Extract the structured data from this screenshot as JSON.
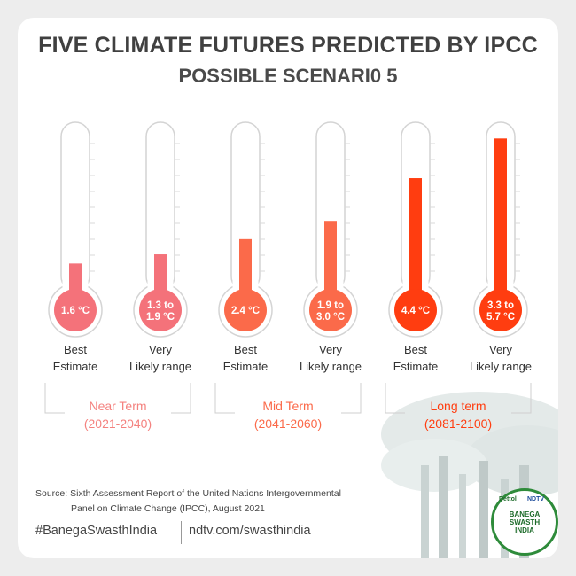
{
  "title": "FIVE CLIMATE FUTURES PREDICTED BY IPCC",
  "subtitle": "POSSIBLE SCENARI0 5",
  "colors": {
    "near": "#f4727a",
    "mid": "#fb6a4a",
    "long": "#ff3d10"
  },
  "chart_data": {
    "type": "bar",
    "categories": [
      "Best Estimate",
      "Very Likely range",
      "Best Estimate",
      "Very Likely range",
      "Best Estimate",
      "Very Likely range"
    ],
    "series": [
      {
        "values": [
          1.6,
          1.9,
          2.4,
          3.0,
          4.4,
          5.7
        ]
      }
    ],
    "bulb_labels": [
      "1.6 °C",
      "1.3 to 1.9 °C",
      "2.4 °C",
      "1.9 to 3.0 °C",
      "4.4 °C",
      "3.3 to 5.7 °C"
    ],
    "ylim": [
      1.0,
      6.0
    ],
    "groups": [
      {
        "name": "Near Term",
        "period": "(2021-2040)"
      },
      {
        "name": "Mid Term",
        "period": "(2041-2060)"
      },
      {
        "name": "Long term",
        "period": "(2081-2100)"
      }
    ]
  },
  "labels": [
    {
      "line1": "Best",
      "line2": "Estimate"
    },
    {
      "line1": "Very",
      "line2": "Likely range"
    },
    {
      "line1": "Best",
      "line2": "Estimate"
    },
    {
      "line1": "Very",
      "line2": "Likely range"
    },
    {
      "line1": "Best",
      "line2": "Estimate"
    },
    {
      "line1": "Very",
      "line2": "Likely range"
    }
  ],
  "source_line1": "Source: Sixth Assessment Report of the United Nations Intergovernmental",
  "source_line2": "Panel on Climate Change (IPCC), August 2021",
  "hashtag": "#BanegaSwasthIndia",
  "url": "ndtv.com/swasthindia",
  "logo": {
    "top_left": "Dettol",
    "top_right": "NDTV",
    "line1": "BANEGA",
    "line2": "SWASTH",
    "line3": "INDIA"
  }
}
